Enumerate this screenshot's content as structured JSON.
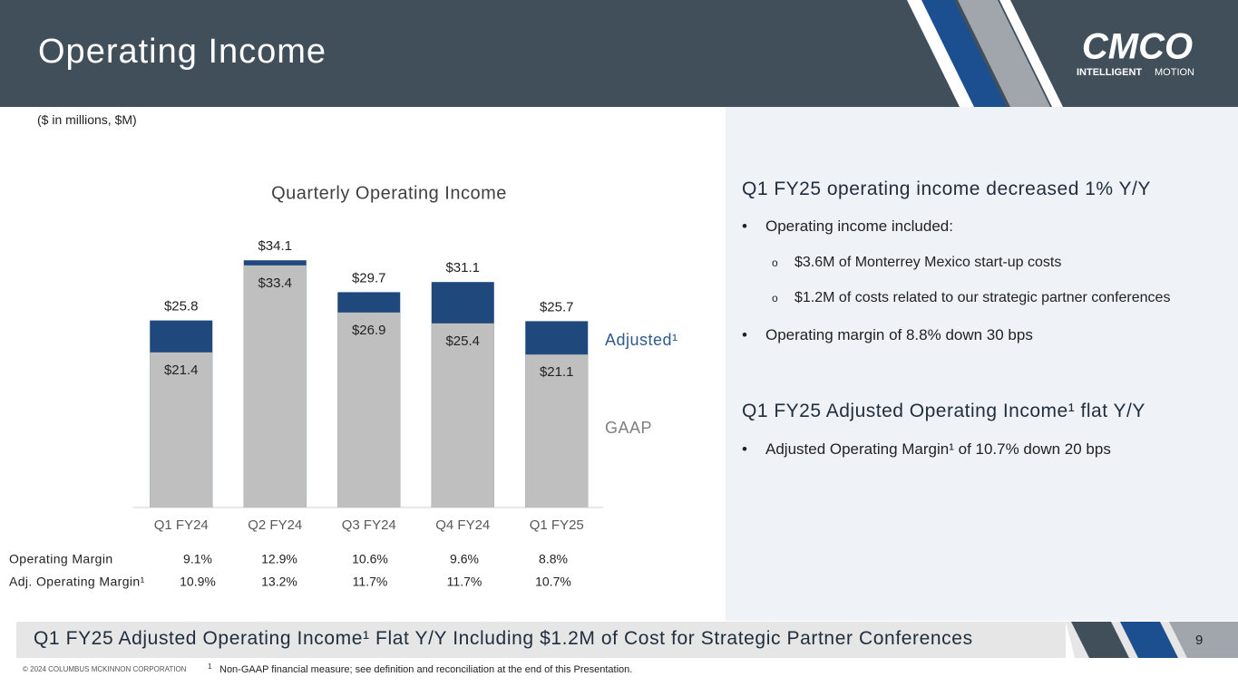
{
  "header": {
    "title": "Operating Income",
    "logo": "CMCO",
    "logo_tagline_bold": "INTELLIGENT",
    "logo_tagline": "MOTION"
  },
  "units_note": "($ in millions, $M)",
  "chart_data": {
    "type": "bar",
    "title": "Quarterly Operating Income",
    "categories": [
      "Q1 FY24",
      "Q2 FY24",
      "Q3 FY24",
      "Q4 FY24",
      "Q1 FY25"
    ],
    "series": [
      {
        "name": "Adjusted¹",
        "color": "#1f497d",
        "values": [
          25.8,
          34.1,
          29.7,
          31.1,
          25.7
        ],
        "value_labels": [
          "$25.8",
          "$34.1",
          "$29.7",
          "$31.1",
          "$25.7"
        ]
      },
      {
        "name": "GAAP",
        "color": "#bfbfbf",
        "values": [
          21.4,
          33.4,
          26.9,
          25.4,
          21.1
        ],
        "value_labels": [
          "$21.4",
          "$33.4",
          "$26.9",
          "$25.4",
          "$21.1"
        ]
      }
    ]
  },
  "margins": {
    "rows": [
      {
        "label": "Operating Margin",
        "values": [
          "9.1%",
          "12.9%",
          "10.6%",
          "9.6%",
          "8.8%"
        ]
      },
      {
        "label": "Adj. Operating Margin¹",
        "values": [
          "10.9%",
          "13.2%",
          "11.7%",
          "11.7%",
          "10.7%"
        ]
      }
    ]
  },
  "commentary": {
    "sections": [
      {
        "heading": "Q1 FY25 operating income decreased 1% Y/Y",
        "bullets": [
          {
            "text": "Operating income included:",
            "sub": [
              "$3.6M of Monterrey Mexico start-up costs",
              "$1.2M of costs related to our strategic partner conferences"
            ]
          },
          {
            "text": "Operating margin of 8.8% down 30 bps"
          }
        ]
      },
      {
        "heading": "Q1 FY25 Adjusted Operating Income¹ flat Y/Y",
        "bullets": [
          {
            "text": "Adjusted Operating Margin¹ of 10.7% down 20 bps"
          }
        ]
      }
    ]
  },
  "banner": "Q1 FY25 Adjusted Operating Income¹ Flat Y/Y Including $1.2M of Cost for Strategic Partner Conferences",
  "page_number": "9",
  "footer": {
    "copyright": "© 2024 COLUMBUS MCKINNON CORPORATION",
    "footnote_mark": "1",
    "footnote": "Non-GAAP financial measure; see definition and reconciliation at the end of this Presentation."
  }
}
